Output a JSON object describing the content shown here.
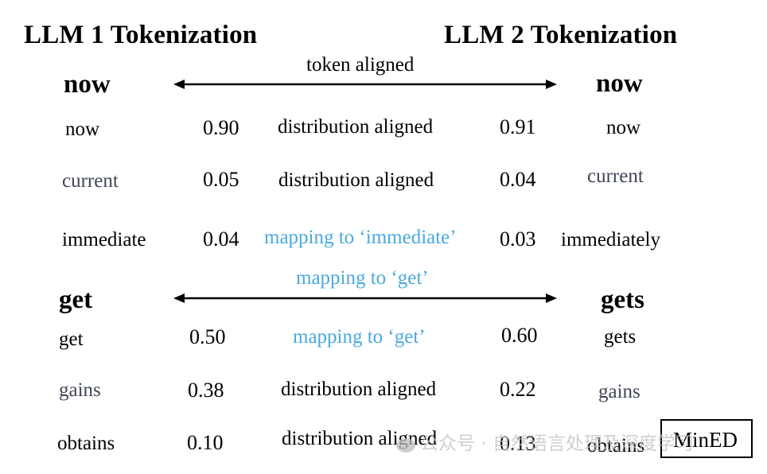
{
  "headings": {
    "left": "LLM 1 Tokenization",
    "right": "LLM 2 Tokenization"
  },
  "groups": [
    {
      "left_anchor": "now",
      "right_anchor": "now",
      "arrow_label": "token aligned",
      "rows": [
        {
          "left_token": "now",
          "left_prob": "0.90",
          "relation": "distribution aligned",
          "right_prob": "0.91",
          "right_token": "now"
        },
        {
          "left_token": "current",
          "left_prob": "0.05",
          "relation": "distribution aligned",
          "right_prob": "0.04",
          "right_token": "current"
        },
        {
          "left_token": "immediate",
          "left_prob": "0.04",
          "relation": "mapping to ‘immediate’",
          "right_prob": "0.03",
          "right_token": "immediately"
        }
      ]
    },
    {
      "left_anchor": "get",
      "right_anchor": "gets",
      "arrow_label": "mapping to ‘get’",
      "rows": [
        {
          "left_token": "get",
          "left_prob": "0.50",
          "relation": "mapping to ‘get’",
          "right_prob": "0.60",
          "right_token": "gets"
        },
        {
          "left_token": "gains",
          "left_prob": "0.38",
          "relation": "distribution aligned",
          "right_prob": "0.22",
          "right_token": "gains"
        },
        {
          "left_token": "obtains",
          "left_prob": "0.10",
          "relation": "distribution aligned",
          "right_prob": "0.13",
          "right_token": "obtains"
        }
      ]
    }
  ],
  "badge": "MinED",
  "watermark": {
    "text": "公众号 · 自然语言处理及深度学习",
    "icon": "wechat-icon"
  },
  "colors": {
    "text": "#000000",
    "muted_token": "#404654",
    "mapping": "#4aa9de",
    "watermark": "#bfbfbf"
  }
}
